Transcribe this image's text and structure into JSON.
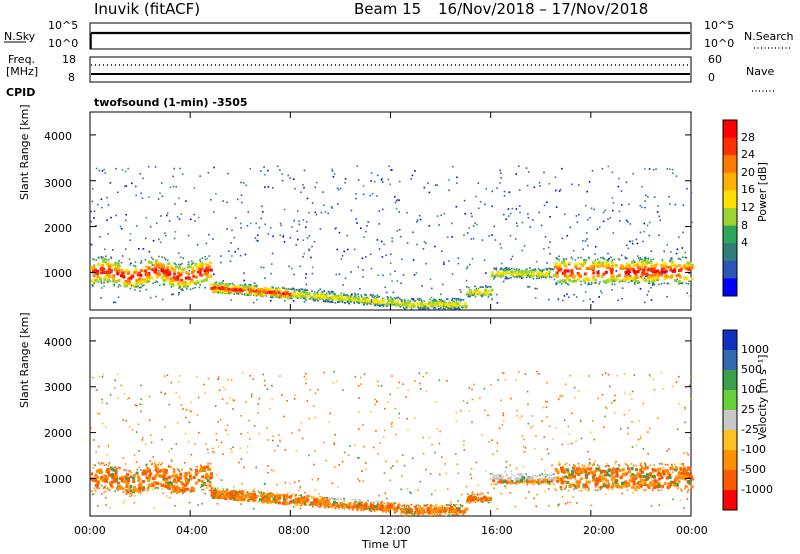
{
  "header": {
    "station": "Inuvik (fitACF)",
    "beam": "Beam 15",
    "dates": "16/Nov/2018 – 17/Nov/2018"
  },
  "nsky_panel": {
    "label": "N.Sky",
    "left_ticks": [
      "10^5",
      "10^0"
    ],
    "right_ticks": [
      "10^5",
      "10^0"
    ],
    "right_label": "N.Search"
  },
  "freq_panel": {
    "label_line1": "Freq.",
    "label_line2": "[MHz]",
    "left_ticks": [
      "18",
      "8"
    ],
    "right_ticks": [
      "60",
      "0"
    ],
    "right_label": "Nave"
  },
  "cpid_panel": {
    "label": "CPID",
    "program": "twofsound (1-min) -3505"
  },
  "chart_data": [
    {
      "type": "heatmap",
      "panel": "power",
      "ylabel": "Slant Range [km]",
      "ylim": [
        180,
        4500
      ],
      "y_ticks": [
        "1000",
        "2000",
        "3000",
        "4000"
      ],
      "x_ticks": [
        "00:00",
        "04:00",
        "08:00",
        "12:00",
        "16:00",
        "20:00",
        "00:00"
      ],
      "xlim_hours": [
        0,
        24
      ],
      "colorbar_label": "Power [dB]",
      "colorbar_ticks": [
        "28",
        "24",
        "20",
        "16",
        "12",
        "8",
        "4"
      ],
      "colorbar_colors": [
        "#ff0000",
        "#ff3000",
        "#ff7a00",
        "#ffb000",
        "#ffe000",
        "#9bd330",
        "#2ea65a",
        "#2f7d7a",
        "#2c55b8",
        "#0000ff"
      ]
    },
    {
      "type": "heatmap",
      "panel": "velocity",
      "ylabel": "Slant Range [km]",
      "ylim": [
        180,
        4500
      ],
      "y_ticks": [
        "1000",
        "2000",
        "3000",
        "4000"
      ],
      "x_ticks": [
        "00:00",
        "04:00",
        "08:00",
        "12:00",
        "16:00",
        "20:00",
        "00:00"
      ],
      "xlim_hours": [
        0,
        24
      ],
      "xlabel": "Time UT",
      "colorbar_label": "Velocity [m s⁻¹]",
      "colorbar_ticks": [
        "1000",
        "500",
        "100",
        "25",
        "-25",
        "-100",
        "-500",
        "-1000"
      ],
      "colorbar_colors": [
        "#1030c0",
        "#2f6bb0",
        "#3aa04a",
        "#66d13a",
        "#c8c8c8",
        "#ffc020",
        "#ff9000",
        "#ff5a00",
        "#ff0000"
      ]
    }
  ]
}
